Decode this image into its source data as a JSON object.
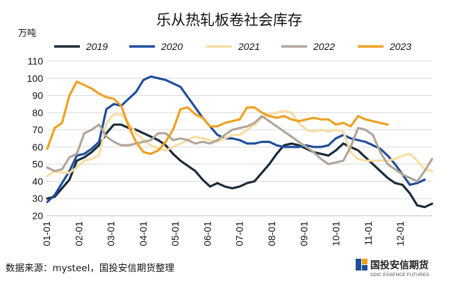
{
  "title": "乐从热轧板卷社会库存",
  "unit": "万吨",
  "source": "数据来源：mysteel，国投安信期货整理",
  "logo": {
    "name": "国投安信期货",
    "sub": "SDIC ESSENCE FUTURES"
  },
  "chart_data": {
    "type": "line",
    "title": "乐从热轧板卷社会库存",
    "ylabel": "万吨",
    "ylim": [
      20,
      110
    ],
    "yticks": [
      20,
      30,
      40,
      50,
      60,
      70,
      80,
      90,
      100,
      110
    ],
    "x_ticks": [
      "01-01",
      "02-01",
      "03-01",
      "04-01",
      "05-01",
      "06-01",
      "07-01",
      "08-01",
      "09-01",
      "10-01",
      "11-01",
      "12-01"
    ],
    "x_unit": "week index (0 = 01-01, ~4.35 weeks per month)",
    "grid": true,
    "legend": "top",
    "series": [
      {
        "name": "2019",
        "color": "#1b2a3a",
        "values": [
          30,
          31,
          36,
          41,
          52,
          54,
          57,
          61,
          68,
          73,
          73,
          71,
          70,
          68,
          66,
          64,
          61,
          56,
          52,
          49,
          46,
          41,
          37,
          39,
          37,
          36,
          37,
          39,
          40,
          45,
          50,
          56,
          61,
          62,
          61,
          59,
          57,
          56,
          55,
          58,
          62,
          60,
          58,
          54,
          50,
          46,
          42,
          39,
          38,
          33,
          26,
          25,
          27
        ]
      },
      {
        "name": "2020",
        "color": "#1f4e9c",
        "values": [
          28,
          32,
          39,
          46,
          55,
          56,
          59,
          63,
          82,
          85,
          84,
          88,
          92,
          99,
          101,
          100,
          99,
          97,
          95,
          89,
          83,
          77,
          72,
          67,
          65,
          65,
          64,
          62,
          62,
          63,
          63,
          61,
          60,
          60,
          60,
          61,
          60,
          60,
          61,
          65,
          67,
          65,
          64,
          63,
          61,
          59,
          55,
          50,
          44,
          38,
          39,
          41
        ]
      },
      {
        "name": "2021",
        "color": "#f8dda3",
        "values": [
          43,
          46,
          45,
          45,
          48,
          52,
          53,
          55,
          74,
          79,
          79,
          74,
          68,
          64,
          61,
          59,
          58,
          60,
          62,
          64,
          66,
          65,
          64,
          63,
          65,
          67,
          67,
          70,
          73,
          77,
          79,
          80,
          81,
          80,
          74,
          70,
          69,
          70,
          69,
          70,
          69,
          57,
          53,
          52,
          52,
          52,
          52,
          53,
          55,
          56,
          52,
          47,
          46
        ]
      },
      {
        "name": "2022",
        "color": "#b2a598",
        "values": [
          48,
          46,
          47,
          54,
          56,
          68,
          70,
          73,
          66,
          63,
          61,
          61,
          62,
          63,
          64,
          68,
          68,
          64,
          65,
          64,
          62,
          63,
          62,
          64,
          67,
          70,
          71,
          72,
          74,
          78,
          75,
          72,
          69,
          66,
          63,
          60,
          57,
          53,
          50,
          51,
          52,
          60,
          71,
          70,
          67,
          57,
          50,
          47,
          44,
          42,
          40,
          46,
          53
        ]
      },
      {
        "name": "2023",
        "color": "#f0a020",
        "values": [
          59,
          71,
          74,
          90,
          98,
          96,
          94,
          91,
          89,
          88,
          84,
          72,
          63,
          57,
          56,
          58,
          63,
          70,
          82,
          83,
          79,
          77,
          72,
          72,
          74,
          75,
          76,
          83,
          83,
          80,
          78,
          77,
          78,
          76,
          75,
          76,
          77,
          76,
          76,
          73,
          74,
          72,
          78,
          76,
          75,
          74,
          73
        ]
      }
    ]
  }
}
